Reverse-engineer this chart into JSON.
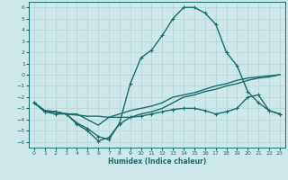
{
  "xlabel": "Humidex (Indice chaleur)",
  "xlim": [
    -0.5,
    23.5
  ],
  "ylim": [
    -6.5,
    6.5
  ],
  "xticks": [
    0,
    1,
    2,
    3,
    4,
    5,
    6,
    7,
    8,
    9,
    10,
    11,
    12,
    13,
    14,
    15,
    16,
    17,
    18,
    19,
    20,
    21,
    22,
    23
  ],
  "yticks": [
    -6,
    -5,
    -4,
    -3,
    -2,
    -1,
    0,
    1,
    2,
    3,
    4,
    5,
    6
  ],
  "bg_color": "#cde8e8",
  "line_color": "#1a6b6b",
  "grid_color": "#b8d8d8",
  "lines": [
    {
      "x": [
        0,
        1,
        2,
        3,
        4,
        5,
        6,
        7,
        8,
        9,
        10,
        11,
        12,
        13,
        14,
        15,
        16,
        17,
        18,
        19,
        20,
        21,
        22,
        23
      ],
      "y": [
        -2.5,
        -3.2,
        -3.3,
        -3.5,
        -3.6,
        -3.7,
        -3.7,
        -3.8,
        -3.8,
        -3.8,
        -3.5,
        -3.3,
        -3.0,
        -2.5,
        -2.0,
        -1.8,
        -1.5,
        -1.3,
        -1.0,
        -0.8,
        -0.5,
        -0.3,
        -0.2,
        -0.0
      ],
      "marker": null,
      "lw": 1.0
    },
    {
      "x": [
        0,
        1,
        2,
        3,
        4,
        5,
        6,
        7,
        8,
        9,
        10,
        11,
        12,
        13,
        14,
        15,
        16,
        17,
        18,
        19,
        20,
        21,
        22,
        23
      ],
      "y": [
        -2.5,
        -3.2,
        -3.3,
        -3.5,
        -3.5,
        -4.0,
        -4.5,
        -3.8,
        -3.5,
        -3.2,
        -3.0,
        -2.8,
        -2.5,
        -2.0,
        -1.8,
        -1.6,
        -1.3,
        -1.0,
        -0.8,
        -0.5,
        -0.3,
        -0.2,
        -0.1,
        0.0
      ],
      "marker": null,
      "lw": 1.0
    },
    {
      "x": [
        0,
        1,
        2,
        3,
        4,
        5,
        6,
        7,
        8,
        9,
        10,
        11,
        12,
        13,
        14,
        15,
        16,
        17,
        18,
        19,
        20,
        21,
        22,
        23
      ],
      "y": [
        -2.5,
        -3.3,
        -3.3,
        -3.5,
        -4.3,
        -4.8,
        -5.5,
        -5.8,
        -4.3,
        -0.8,
        1.5,
        2.2,
        3.5,
        5.0,
        6.0,
        6.0,
        5.5,
        4.5,
        2.0,
        0.8,
        -1.5,
        -2.5,
        -3.2,
        -3.5
      ],
      "marker": "+",
      "lw": 1.0
    },
    {
      "x": [
        0,
        1,
        2,
        3,
        4,
        5,
        6,
        7,
        8,
        9,
        10,
        11,
        12,
        13,
        14,
        15,
        16,
        17,
        18,
        19,
        20,
        21,
        22,
        23
      ],
      "y": [
        -2.5,
        -3.3,
        -3.5,
        -3.5,
        -4.4,
        -5.0,
        -5.9,
        -5.6,
        -4.4,
        -3.8,
        -3.7,
        -3.5,
        -3.3,
        -3.1,
        -3.0,
        -3.0,
        -3.2,
        -3.5,
        -3.3,
        -3.0,
        -2.0,
        -1.8,
        -3.2,
        -3.5
      ],
      "marker": "+",
      "lw": 1.0
    }
  ]
}
